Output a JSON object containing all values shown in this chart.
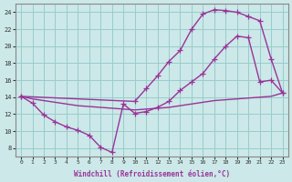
{
  "xlabel": "Windchill (Refroidissement éolien,°C)",
  "bg_color": "#cce8e8",
  "line_color": "#993399",
  "grid_color": "#99cccc",
  "xlim": [
    -0.5,
    23.5
  ],
  "ylim": [
    7,
    25
  ],
  "xticks": [
    0,
    1,
    2,
    3,
    4,
    5,
    6,
    7,
    8,
    9,
    10,
    11,
    12,
    13,
    14,
    15,
    16,
    17,
    18,
    19,
    20,
    21,
    22,
    23
  ],
  "yticks": [
    8,
    10,
    12,
    14,
    16,
    18,
    20,
    22,
    24
  ],
  "line1_x": [
    0,
    1,
    2,
    3,
    4,
    5,
    6,
    7,
    8,
    9,
    10,
    11,
    12,
    13,
    14,
    15,
    16,
    17,
    18,
    19,
    20,
    21,
    22,
    23
  ],
  "line1_y": [
    14.1,
    13.3,
    11.9,
    11.1,
    10.5,
    10.1,
    9.5,
    8.1,
    7.5,
    13.2,
    12.1,
    12.3,
    12.8,
    13.5,
    14.8,
    15.8,
    16.8,
    18.5,
    20.0,
    21.2,
    21.0,
    15.8,
    16.0,
    14.5
  ],
  "line2_x": [
    0,
    10,
    11,
    12,
    13,
    14,
    15,
    16,
    17,
    18,
    19,
    20,
    21,
    22,
    23
  ],
  "line2_y": [
    14.1,
    13.5,
    15.0,
    16.5,
    18.2,
    19.5,
    22.0,
    23.8,
    24.3,
    24.2,
    24.0,
    23.5,
    23.0,
    18.5,
    14.5
  ],
  "line3_x": [
    0,
    1,
    2,
    3,
    4,
    5,
    6,
    7,
    8,
    9,
    10,
    11,
    12,
    13,
    14,
    15,
    16,
    17,
    18,
    19,
    20,
    21,
    22,
    23
  ],
  "line3_y": [
    14.1,
    13.8,
    13.6,
    13.4,
    13.2,
    13.0,
    12.9,
    12.8,
    12.7,
    12.6,
    12.5,
    12.6,
    12.7,
    12.8,
    13.0,
    13.2,
    13.4,
    13.6,
    13.7,
    13.8,
    13.9,
    14.0,
    14.1,
    14.5
  ],
  "marker": "+",
  "markersize": 4,
  "linewidth": 1.0
}
